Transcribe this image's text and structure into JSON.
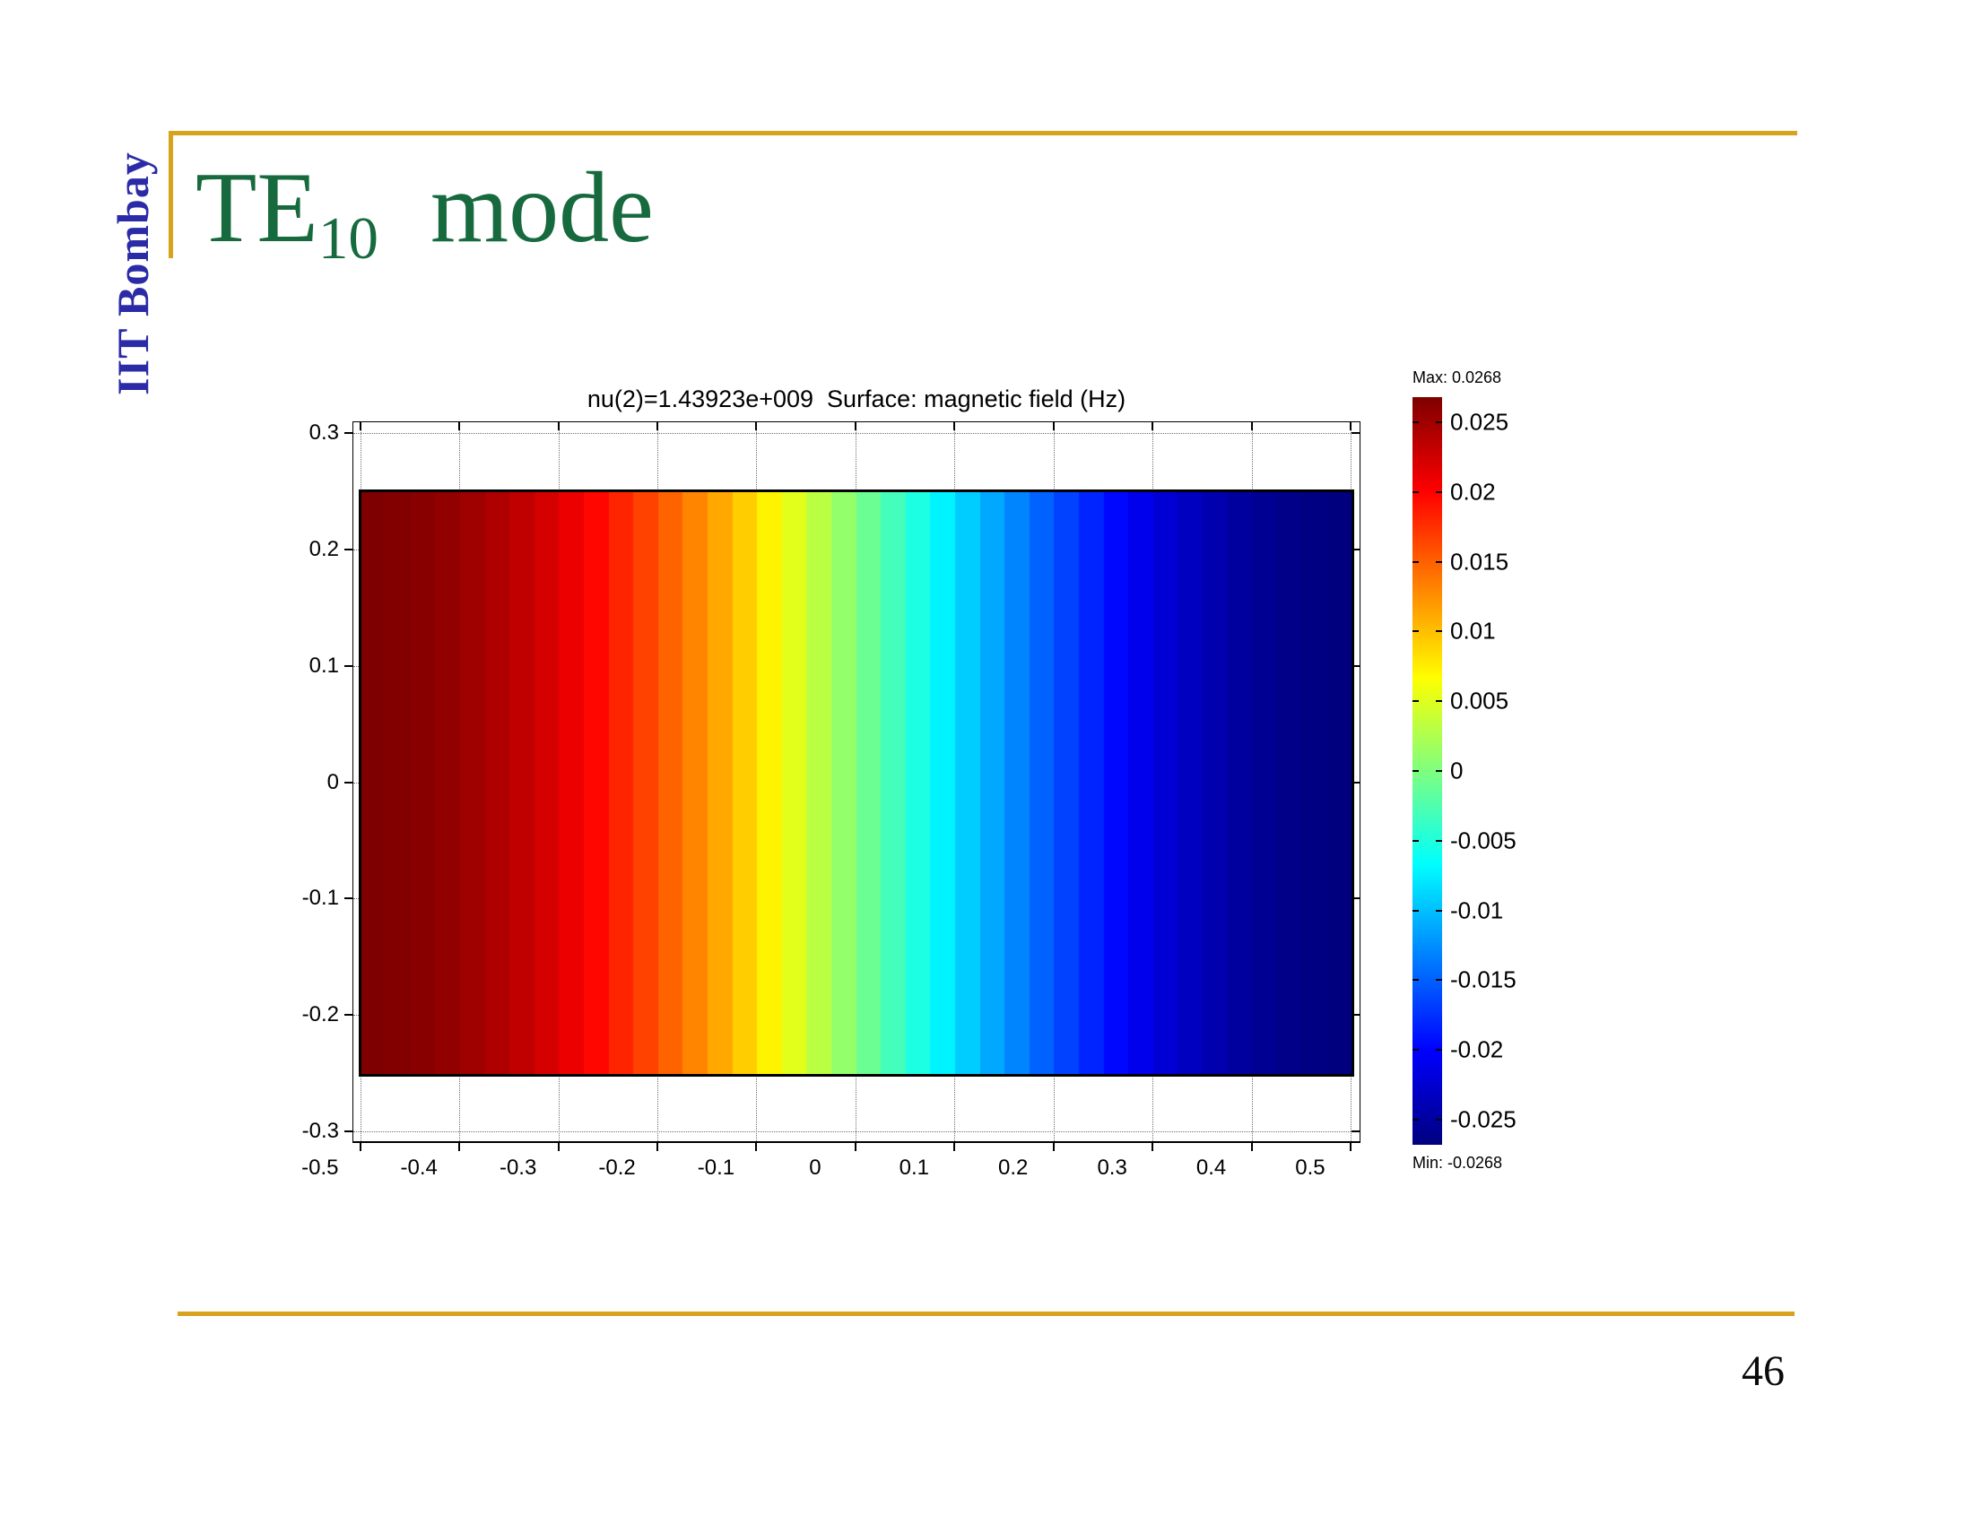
{
  "slide": {
    "institute": "IIT Bombay",
    "title": {
      "main": "TE",
      "subscript": "10",
      "suffix": "mode"
    },
    "page_number": "46",
    "colors": {
      "gold": "#d7a31c",
      "blue": "#2b2ba8",
      "green": "#17693e"
    }
  },
  "chart_data": {
    "type": "heatmap",
    "title": "nu(2)=1.43923e+009  Surface: magnetic field (Hz)",
    "colormap": "jet",
    "grid": true,
    "xlim": [
      -0.508,
      0.51
    ],
    "ylim": [
      -0.31,
      0.31
    ],
    "x_tick_values": [
      -0.5,
      -0.4,
      -0.3,
      -0.2,
      -0.1,
      0,
      0.1,
      0.2,
      0.3,
      0.4,
      0.5
    ],
    "x_tick_labels": [
      "-0.5",
      "-0.4",
      "-0.3",
      "-0.2",
      "-0.1",
      "0",
      "0.1",
      "0.2",
      "0.3",
      "0.4",
      "0.5"
    ],
    "y_tick_values": [
      0.3,
      0.2,
      0.1,
      0,
      -0.1,
      -0.2,
      -0.3
    ],
    "y_tick_labels": [
      "0.3",
      "0.2",
      "0.1",
      "0",
      "-0.1",
      "-0.2",
      "-0.3"
    ],
    "surface_extent": {
      "x": [
        -0.5,
        0.5
      ],
      "y": [
        -0.25,
        0.25
      ]
    },
    "field": {
      "quantity": "magnetic field Hz, TE10 mode",
      "profile": "cosine",
      "uniform_in_y": true,
      "max": 0.0268,
      "min": -0.0268,
      "bands": 40,
      "samples_x": [
        -0.5,
        -0.4,
        -0.3,
        -0.2,
        -0.1,
        0,
        0.1,
        0.2,
        0.3,
        0.4,
        0.5
      ],
      "samples_value": [
        0.0268,
        0.0255,
        0.0217,
        0.0158,
        0.0083,
        0,
        -0.0083,
        -0.0158,
        -0.0217,
        -0.0255,
        -0.0268
      ]
    },
    "colorbar": {
      "max_label": "Max: 0.0268",
      "min_label": "Min: -0.0268",
      "range": [
        -0.0268,
        0.0268
      ],
      "tick_values": [
        0.025,
        0.02,
        0.015,
        0.01,
        0.005,
        0,
        -0.005,
        -0.01,
        -0.015,
        -0.02,
        -0.025
      ],
      "tick_labels": [
        "0.025",
        "0.02",
        "0.015",
        "0.01",
        "0.005",
        "0",
        "-0.005",
        "-0.01",
        "-0.015",
        "-0.02",
        "-0.025"
      ]
    }
  }
}
